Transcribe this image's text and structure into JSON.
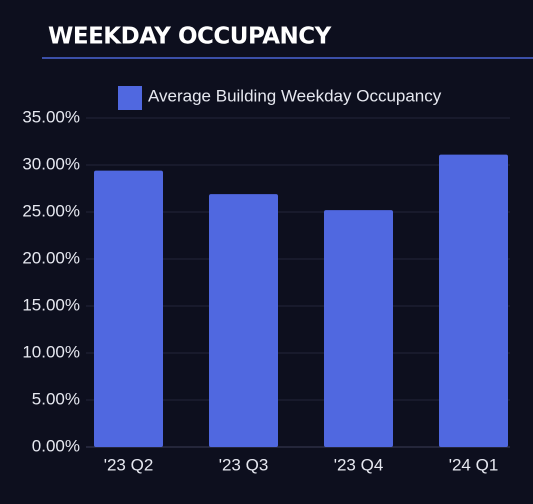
{
  "chart_data": {
    "type": "bar",
    "title": "WEEKDAY OCCUPANCY",
    "categories": [
      "'23 Q2",
      "'23 Q3",
      "'23 Q4",
      "'24 Q1"
    ],
    "series": [
      {
        "name": "Average Building Weekday Occupancy",
        "color": "#5068e0",
        "values": [
          29.4,
          26.9,
          25.2,
          31.1
        ]
      }
    ],
    "ylim": [
      0,
      35
    ],
    "yticks": [
      {
        "value": 0,
        "label": "0.00%"
      },
      {
        "value": 5,
        "label": "5.00%"
      },
      {
        "value": 10,
        "label": "10.00%"
      },
      {
        "value": 15,
        "label": "15.00%"
      },
      {
        "value": 20,
        "label": "20.00%"
      },
      {
        "value": 25,
        "label": "25.00%"
      },
      {
        "value": 30,
        "label": "30.00%"
      },
      {
        "value": 35,
        "label": "35.00%"
      }
    ],
    "grid": true,
    "legend": "top"
  }
}
